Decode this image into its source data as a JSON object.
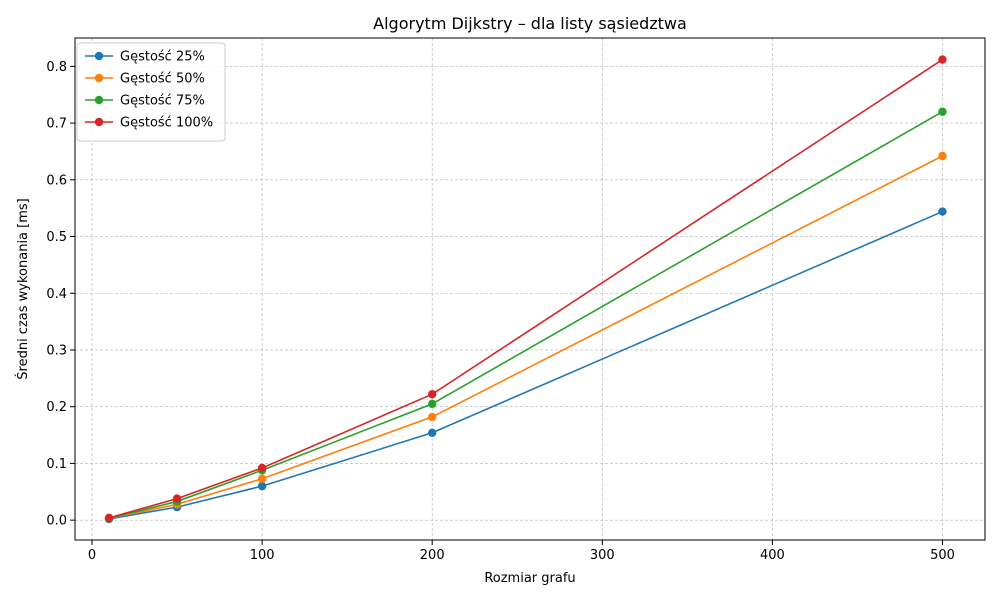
{
  "chart_data": {
    "type": "line",
    "title": "Algorytm Dijkstry – dla listy sąsiedztwa",
    "xlabel": "Rozmiar grafu",
    "ylabel": "Średni czas wykonania [ms]",
    "xlim": [
      -10,
      525
    ],
    "ylim": [
      -0.035,
      0.85
    ],
    "xticks": [
      0,
      100,
      200,
      300,
      400,
      500
    ],
    "xtick_labels": [
      "0",
      "100",
      "200",
      "300",
      "400",
      "500"
    ],
    "yticks": [
      0.0,
      0.1,
      0.2,
      0.3,
      0.4,
      0.5,
      0.6,
      0.7,
      0.8
    ],
    "ytick_labels": [
      "0.0",
      "0.1",
      "0.2",
      "0.3",
      "0.4",
      "0.5",
      "0.6",
      "0.7",
      "0.8"
    ],
    "grid": true,
    "legend_position": "top-left",
    "x": [
      10,
      50,
      100,
      200,
      500
    ],
    "series": [
      {
        "name": "Gęstość 25%",
        "color": "#1f77b4",
        "values": [
          0.002,
          0.023,
          0.06,
          0.154,
          0.544
        ]
      },
      {
        "name": "Gęstość 50%",
        "color": "#ff7f0e",
        "values": [
          0.003,
          0.028,
          0.073,
          0.182,
          0.642
        ]
      },
      {
        "name": "Gęstość 75%",
        "color": "#2ca02c",
        "values": [
          0.003,
          0.033,
          0.088,
          0.205,
          0.72
        ]
      },
      {
        "name": "Gęstość 100%",
        "color": "#d62728",
        "values": [
          0.004,
          0.038,
          0.092,
          0.222,
          0.812
        ]
      }
    ]
  }
}
